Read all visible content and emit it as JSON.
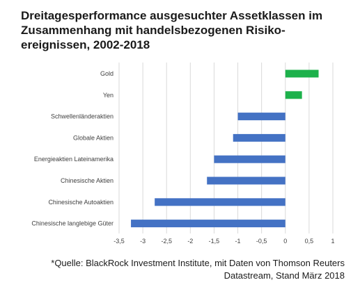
{
  "title_lines": [
    "Dreitagesperformance ausgesuchter Assetklassen im",
    "Zusammenhang mit handelsbezogenen Risiko-",
    "ereignissen, 2002-2018"
  ],
  "source_lines": [
    "*Quelle: BlackRock Investment Institute, mit Daten von Thomson Reuters",
    "Datastream, Stand März 2018"
  ],
  "colors": {
    "positive": "#1DB14B",
    "negative": "#4472C4",
    "grid": "#d9d9d9",
    "text": "#404040"
  },
  "chart_data": {
    "type": "bar",
    "orientation": "horizontal",
    "categories": [
      "Gold",
      "Yen",
      "Schwellenländeraktien",
      "Globale Aktien",
      "Energieaktien Lateinamerika",
      "Chinesische Aktien",
      "Chinesische Autoaktien",
      "Chinesische langlebige Güter"
    ],
    "values": [
      0.7,
      0.35,
      -1.0,
      -1.1,
      -1.5,
      -1.65,
      -2.75,
      -3.25
    ],
    "xlim": [
      -3.5,
      1
    ],
    "xticks": [
      -3.5,
      -3,
      -2.5,
      -2,
      -1.5,
      -1,
      -0.5,
      0,
      0.5,
      1
    ],
    "xtick_labels": [
      "-3,5",
      "-3",
      "-2,5",
      "-2",
      "-1,5",
      "-1",
      "-0,5",
      "0",
      "0,5",
      "1"
    ],
    "grid": true,
    "legend": "none"
  }
}
